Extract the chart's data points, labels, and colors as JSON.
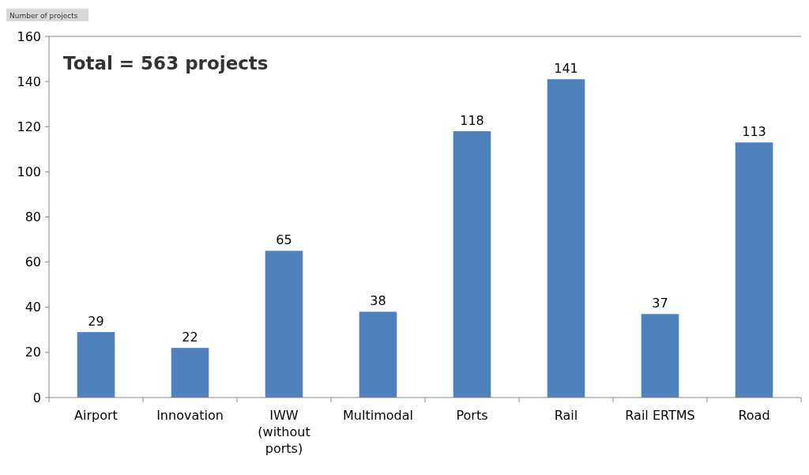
{
  "chart_data": {
    "type": "bar",
    "ylabel": "Number of projects",
    "annotations": [
      "Total = 563 projects"
    ],
    "categories": [
      "Airport",
      "Innovation",
      "IWW (without ports)",
      "Multimodal",
      "Ports",
      "Rail",
      "Rail ERTMS",
      "Road"
    ],
    "values": [
      29,
      22,
      65,
      38,
      118,
      141,
      37,
      113
    ],
    "color": "#4f81bd",
    "ylim": [
      0,
      160
    ],
    "yticks": [
      0,
      20,
      40,
      60,
      80,
      100,
      120,
      140,
      160
    ],
    "data_labels": true
  }
}
